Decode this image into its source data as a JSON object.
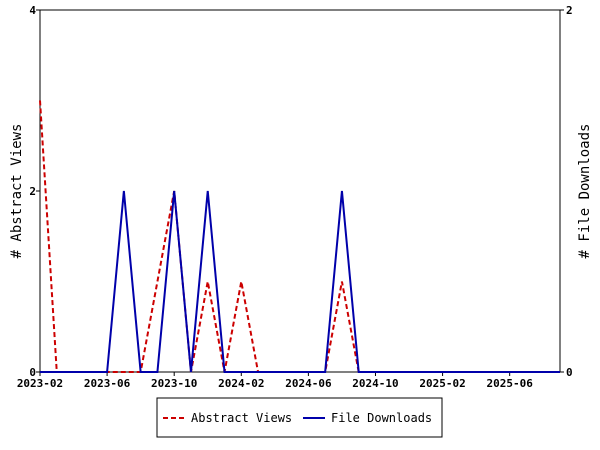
{
  "chart_data": {
    "type": "line",
    "y_label": "# Abstract Views",
    "y2_label": "# File Downloads",
    "categories": [
      "2023-02",
      null,
      null,
      null,
      "2023-06",
      null,
      null,
      null,
      "2023-10",
      null,
      null,
      null,
      "2024-02",
      null,
      null,
      null,
      "2024-06",
      null,
      null,
      null,
      "2024-10",
      null,
      null,
      null,
      "2025-02",
      null,
      null,
      null,
      "2025-06",
      null,
      null,
      null
    ],
    "series": [
      {
        "name": "Abstract Views",
        "color": "#cc0000",
        "dashed": true,
        "values": [
          3,
          0,
          0,
          0,
          0,
          0,
          0,
          1,
          2,
          0,
          1,
          0,
          1,
          0,
          0,
          0,
          0,
          0,
          1,
          0,
          0,
          0,
          0,
          0,
          0,
          0,
          0,
          0,
          0,
          0,
          0,
          0
        ]
      },
      {
        "name": "File Downloads",
        "color": "#0000aa",
        "axis": "y2",
        "values": [
          0,
          0,
          0,
          0,
          0,
          1,
          0,
          0,
          1,
          0,
          1,
          0,
          0,
          0,
          0,
          0,
          0,
          0,
          1,
          0,
          0,
          0,
          0,
          0,
          0,
          0,
          0,
          0,
          0,
          0,
          0,
          0
        ]
      }
    ],
    "ylim": [
      0,
      4
    ],
    "yticks": [
      0,
      2,
      4
    ],
    "y2lim": [
      0,
      2
    ],
    "y2ticks": [
      0,
      2
    ],
    "legend": "bottom"
  }
}
